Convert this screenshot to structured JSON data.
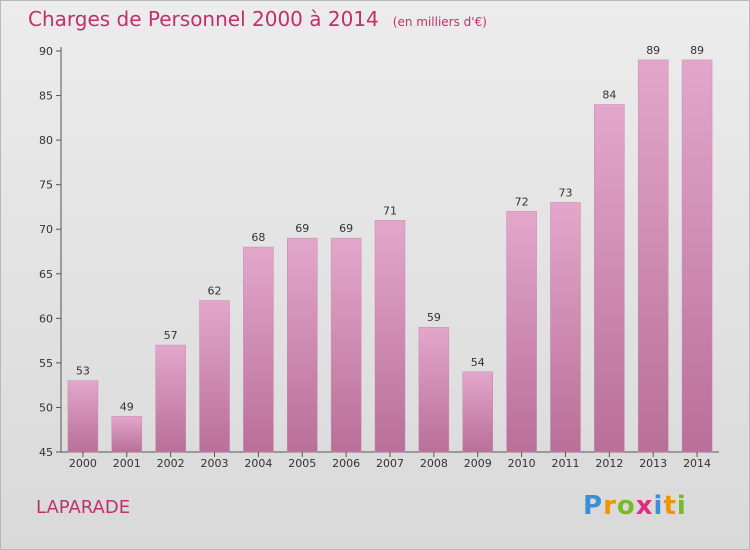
{
  "chart_data": {
    "type": "bar",
    "title": "Charges de Personnel 2000 à 2014",
    "subtitle": "(en milliers d'€)",
    "xlabel": "",
    "ylabel": "",
    "categories": [
      "2000",
      "2001",
      "2002",
      "2003",
      "2004",
      "2005",
      "2006",
      "2007",
      "2008",
      "2009",
      "2010",
      "2011",
      "2012",
      "2013",
      "2014"
    ],
    "values": [
      53,
      49,
      57,
      62,
      68,
      69,
      69,
      71,
      59,
      54,
      72,
      73,
      84,
      89,
      89
    ],
    "ylim": [
      45,
      90
    ],
    "yticks": [
      45,
      50,
      55,
      60,
      65,
      70,
      75,
      80,
      85,
      90
    ],
    "grid": false,
    "bar_color_top": "#e3a7cb",
    "bar_color_bottom": "#b96f98",
    "title_color": "#c0306a"
  },
  "footer": {
    "location": "LAPARADE"
  },
  "logo": {
    "letters": [
      "P",
      "r",
      "o",
      "x",
      "i",
      "t",
      "i"
    ],
    "colors": [
      "#3a8fd6",
      "#f29400",
      "#7cb928",
      "#e02d7d",
      "#3a8fd6",
      "#f29400",
      "#7cb928"
    ]
  }
}
